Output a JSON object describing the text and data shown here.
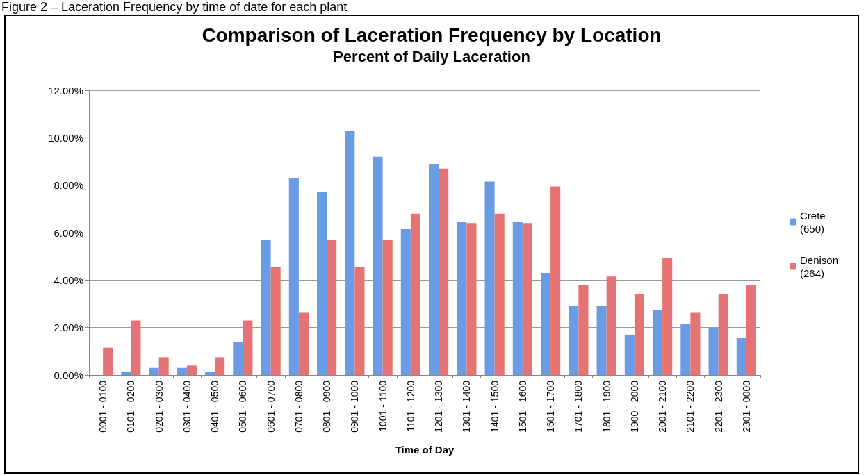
{
  "chart_data": {
    "type": "bar",
    "title": "Comparison of Laceration Frequency by Location",
    "subtitle": "Percent of Daily Laceration",
    "xlabel": "Time of Day",
    "annotations": [
      "Figure 2 – Laceration Frequency by time of date for each plant"
    ],
    "categories": [
      "0001 - 0100",
      "0101 - 0200",
      "0201 - 0300",
      "0301 - 0400",
      "0401 - 0500",
      "0501 - 0600",
      "0601 - 0700",
      "0701 - 0800",
      "0801 - 0900",
      "0901 - 1000",
      "1001 - 1100",
      "1101 - 1200",
      "1201 - 1300",
      "1301 - 1400",
      "1401 - 1500",
      "1501 - 1600",
      "1601 - 1700",
      "1701 - 1800",
      "1801 - 1900",
      "1900 - 2000",
      "2001 - 2100",
      "2101 - 2200",
      "2201 - 2300",
      "2301 - 0000"
    ],
    "series": [
      {
        "name": "Crete (650)",
        "color": "#6a9be6",
        "values": [
          0,
          0.15,
          0.3,
          0.3,
          0.15,
          1.4,
          5.7,
          8.3,
          7.7,
          10.3,
          9.2,
          6.15,
          8.9,
          6.45,
          8.15,
          6.45,
          4.3,
          2.9,
          2.9,
          1.7,
          2.75,
          2.15,
          2.0,
          1.55
        ]
      },
      {
        "name": "Denison (264)",
        "color": "#e57373",
        "values": [
          1.15,
          2.3,
          0.75,
          0.4,
          0.75,
          2.3,
          4.55,
          2.65,
          5.7,
          4.55,
          5.7,
          6.8,
          8.7,
          6.4,
          6.8,
          6.4,
          7.95,
          3.8,
          4.15,
          3.4,
          4.95,
          2.65,
          3.4,
          3.8
        ]
      }
    ],
    "ylim": [
      0,
      12
    ],
    "yticks": [
      {
        "value": 0,
        "label": "0.00%"
      },
      {
        "value": 2,
        "label": "2.00%"
      },
      {
        "value": 4,
        "label": "4.00%"
      },
      {
        "value": 6,
        "label": "6.00%"
      },
      {
        "value": 8,
        "label": "8.00%"
      },
      {
        "value": 10,
        "label": "10.00%"
      },
      {
        "value": 12,
        "label": "12.00%"
      }
    ],
    "grid": "y",
    "legend": "right"
  }
}
